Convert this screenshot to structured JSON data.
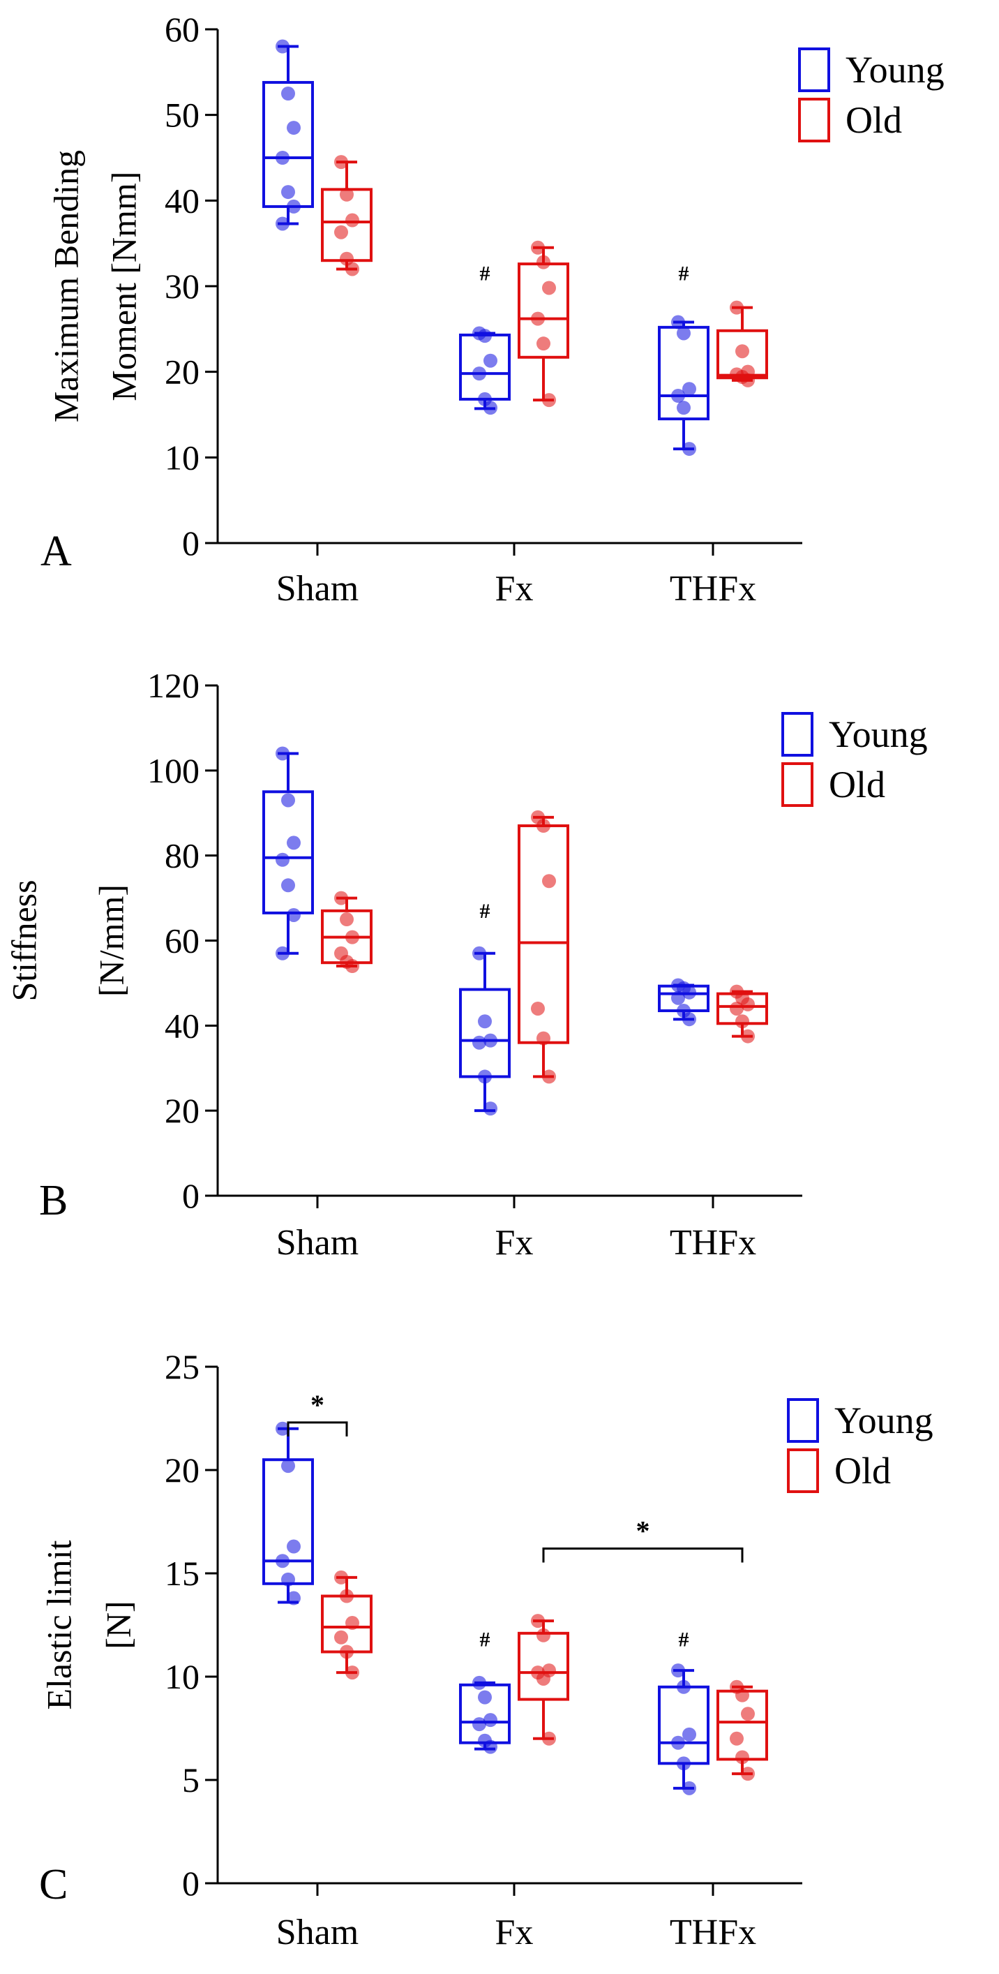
{
  "colors": {
    "young": "#1010E0",
    "old": "#E01010",
    "axis": "#000000"
  },
  "chart_data": [
    {
      "type": "box",
      "panel_label": "A",
      "ylabel_lines": [
        "Maximum Bending",
        "Moment [Nmm]"
      ],
      "ylim": [
        0,
        60
      ],
      "yticks": [
        0,
        10,
        20,
        30,
        40,
        50,
        60
      ],
      "categories": [
        "Sham",
        "Fx",
        "THFx"
      ],
      "legend": [
        "Young",
        "Old"
      ],
      "series": [
        {
          "name": "Young",
          "boxes": [
            {
              "min": 37.3,
              "q1": 39.3,
              "median": 45.0,
              "q3": 53.8,
              "max": 58.0,
              "points": [
                58.0,
                52.5,
                48.5,
                45.0,
                41.0,
                39.3,
                37.3
              ]
            },
            {
              "min": 15.7,
              "q1": 16.8,
              "median": 19.8,
              "q3": 24.3,
              "max": 24.5,
              "points": [
                24.5,
                24.2,
                21.3,
                19.8,
                16.8,
                15.8
              ]
            },
            {
              "min": 11.0,
              "q1": 14.5,
              "median": 17.2,
              "q3": 25.2,
              "max": 25.8,
              "points": [
                25.8,
                24.5,
                18.0,
                17.2,
                15.8,
                11.0
              ]
            }
          ]
        },
        {
          "name": "Old",
          "boxes": [
            {
              "min": 32.0,
              "q1": 33.0,
              "median": 37.5,
              "q3": 41.3,
              "max": 44.5,
              "points": [
                44.5,
                40.7,
                37.7,
                36.3,
                33.2,
                32.0
              ]
            },
            {
              "min": 16.7,
              "q1": 21.7,
              "median": 26.2,
              "q3": 32.6,
              "max": 34.5,
              "points": [
                34.5,
                32.8,
                29.8,
                26.2,
                23.3,
                16.7
              ]
            },
            {
              "min": 19.0,
              "q1": 19.3,
              "median": 19.6,
              "q3": 24.8,
              "max": 27.5,
              "points": [
                27.5,
                22.4,
                20.0,
                19.7,
                19.4,
                19.0
              ]
            }
          ]
        }
      ],
      "annotations": [
        {
          "text": "#",
          "category": 1,
          "series": 0,
          "y": 31.5
        },
        {
          "text": "#",
          "category": 2,
          "series": 0,
          "y": 31.5
        }
      ],
      "brackets": []
    },
    {
      "type": "box",
      "panel_label": "B",
      "ylabel_lines": [
        "Stiffness",
        "[N/mm]"
      ],
      "ylim": [
        0,
        120
      ],
      "yticks": [
        0,
        20,
        40,
        60,
        80,
        100,
        120
      ],
      "categories": [
        "Sham",
        "Fx",
        "THFx"
      ],
      "legend": [
        "Young",
        "Old"
      ],
      "series": [
        {
          "name": "Young",
          "boxes": [
            {
              "min": 57,
              "q1": 66.5,
              "median": 79.5,
              "q3": 95,
              "max": 104,
              "points": [
                104,
                93,
                83,
                79,
                73,
                66,
                57
              ]
            },
            {
              "min": 20,
              "q1": 28,
              "median": 36.5,
              "q3": 48.5,
              "max": 57,
              "points": [
                57,
                41,
                36.5,
                36,
                28,
                20.5
              ]
            },
            {
              "min": 41.5,
              "q1": 43.5,
              "median": 47.5,
              "q3": 49.3,
              "max": 49.5,
              "points": [
                49.5,
                48.8,
                47.8,
                46.5,
                43.5,
                41.5
              ]
            }
          ]
        },
        {
          "name": "Old",
          "boxes": [
            {
              "min": 54,
              "q1": 54.8,
              "median": 60.8,
              "q3": 67,
              "max": 70,
              "points": [
                70,
                65,
                60.8,
                57,
                55,
                54
              ]
            },
            {
              "min": 28,
              "q1": 36,
              "median": 59.5,
              "q3": 87,
              "max": 89,
              "points": [
                89,
                87,
                74,
                44,
                37,
                28
              ]
            },
            {
              "min": 37.5,
              "q1": 40.5,
              "median": 44.5,
              "q3": 47.5,
              "max": 48,
              "points": [
                48,
                46.5,
                45,
                44,
                41,
                37.5
              ]
            }
          ]
        }
      ],
      "annotations": [
        {
          "text": "#",
          "category": 1,
          "series": 0,
          "y": 67
        }
      ],
      "brackets": []
    },
    {
      "type": "box",
      "panel_label": "C",
      "ylabel_lines": [
        "Elastic limit",
        "[N]"
      ],
      "ylim": [
        0,
        25
      ],
      "yticks": [
        0,
        5,
        10,
        15,
        20,
        25
      ],
      "categories": [
        "Sham",
        "Fx",
        "THFx"
      ],
      "legend": [
        "Young",
        "Old"
      ],
      "series": [
        {
          "name": "Young",
          "boxes": [
            {
              "min": 13.6,
              "q1": 14.5,
              "median": 15.6,
              "q3": 20.5,
              "max": 22.0,
              "points": [
                22.0,
                20.2,
                16.3,
                15.6,
                14.7,
                13.8
              ]
            },
            {
              "min": 6.5,
              "q1": 6.8,
              "median": 7.8,
              "q3": 9.6,
              "max": 9.7,
              "points": [
                9.7,
                9.0,
                7.9,
                7.7,
                6.9,
                6.6
              ]
            },
            {
              "min": 4.6,
              "q1": 5.8,
              "median": 6.8,
              "q3": 9.5,
              "max": 10.3,
              "points": [
                10.3,
                9.5,
                7.2,
                6.8,
                5.8,
                4.6
              ]
            }
          ]
        },
        {
          "name": "Old",
          "boxes": [
            {
              "min": 10.2,
              "q1": 11.2,
              "median": 12.4,
              "q3": 13.9,
              "max": 14.8,
              "points": [
                14.8,
                13.9,
                12.6,
                11.9,
                11.2,
                10.2
              ]
            },
            {
              "min": 7.0,
              "q1": 8.9,
              "median": 10.2,
              "q3": 12.1,
              "max": 12.7,
              "points": [
                12.7,
                12.0,
                10.3,
                10.2,
                9.9,
                7.0
              ]
            },
            {
              "min": 5.3,
              "q1": 6.0,
              "median": 7.8,
              "q3": 9.3,
              "max": 9.5,
              "points": [
                9.5,
                9.1,
                8.2,
                7.0,
                6.1,
                5.3
              ]
            }
          ]
        }
      ],
      "annotations": [
        {
          "text": "#",
          "category": 1,
          "series": 0,
          "y": 11.8
        },
        {
          "text": "#",
          "category": 2,
          "series": 0,
          "y": 11.8
        }
      ],
      "brackets": [
        {
          "from_category": 0,
          "from_series": 0,
          "to_category": 0,
          "to_series": 1,
          "y": 22.3,
          "label": "*"
        },
        {
          "from_category": 1,
          "from_series": 1,
          "to_category": 2,
          "to_series": 1,
          "y": 16.2,
          "label": "*"
        }
      ]
    }
  ]
}
